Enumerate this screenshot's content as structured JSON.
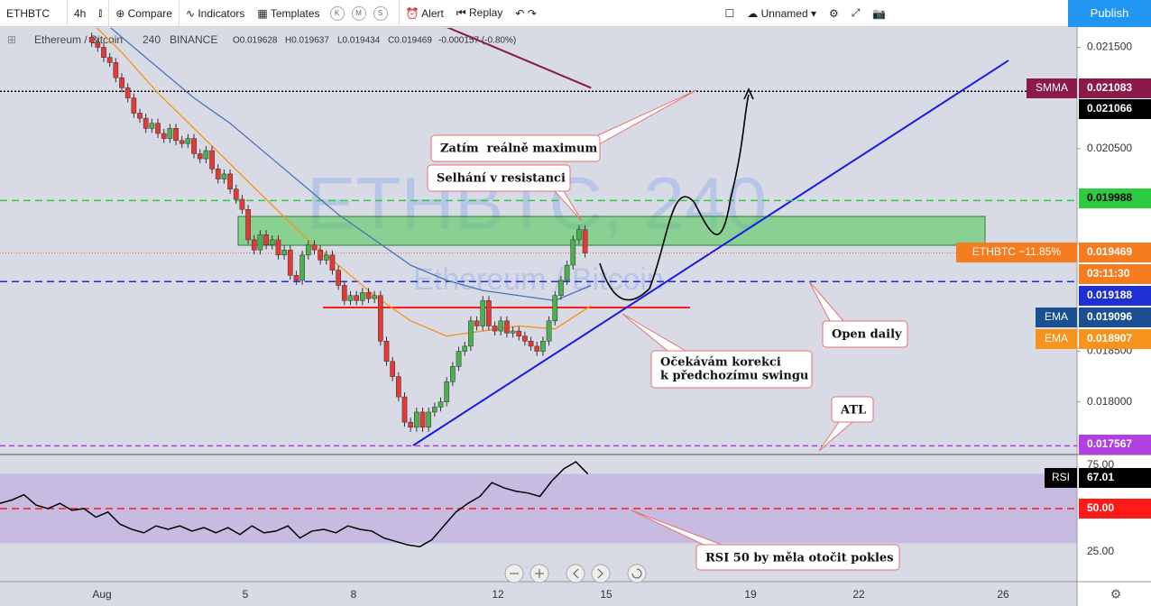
{
  "toolbar": {
    "symbol": "ETHBTC",
    "interval": "4h",
    "compare": "Compare",
    "indicators": "Indicators",
    "templates": "Templates",
    "k": "K",
    "m": "M",
    "s": "S",
    "alert": "Alert",
    "replay": "Replay",
    "layout": "Unnamed",
    "publish": "Publish"
  },
  "chart_data": {
    "type": "candlestick",
    "watermark": "ETHBTC, 240",
    "watermark_sub": "Ethereum / Bitcoin",
    "legend": {
      "name": "Ethereum / Bitcoin",
      "interval": "240",
      "exchange": "BINANCE",
      "open": "O0.019628",
      "high": "H0.019637",
      "low": "L0.019434",
      "close": "C0.019469",
      "change": "-0.000157 (-0.80%)"
    },
    "ylim": [
      0.01749,
      0.0217
    ],
    "yticks": [
      {
        "value": 0.0215,
        "label": "0.021500"
      },
      {
        "value": 0.0205,
        "label": "0.020500"
      },
      {
        "value": 0.0185,
        "label": "0.018500"
      },
      {
        "value": 0.018,
        "label": "0.018000"
      }
    ],
    "x_labels": [
      "Aug",
      "5",
      "8",
      "12",
      "15",
      "19",
      "22",
      "26"
    ],
    "colors": {
      "up": "#4caf50",
      "down": "#e53935"
    },
    "closes": [
      0.0216,
      0.02155,
      0.0215,
      0.0214,
      0.02135,
      0.0212,
      0.0211,
      0.021,
      0.02085,
      0.0208,
      0.0207,
      0.02075,
      0.02065,
      0.0206,
      0.0207,
      0.02058,
      0.02055,
      0.0206,
      0.02045,
      0.0204,
      0.02048,
      0.0203,
      0.0202,
      0.02025,
      0.0201,
      0.02,
      0.0199,
      0.0196,
      0.0195,
      0.01965,
      0.01955,
      0.0196,
      0.01945,
      0.0195,
      0.01925,
      0.0192,
      0.01945,
      0.01955,
      0.0195,
      0.0194,
      0.01945,
      0.0193,
      0.01915,
      0.019,
      0.01905,
      0.019,
      0.01908,
      0.01902,
      0.01905,
      0.0186,
      0.0184,
      0.01825,
      0.01805,
      0.0178,
      0.01775,
      0.0179,
      0.01775,
      0.0179,
      0.01795,
      0.018,
      0.0182,
      0.01835,
      0.0185,
      0.01855,
      0.0188,
      0.01875,
      0.019,
      0.01875,
      0.0187,
      0.0188,
      0.01868,
      0.0187,
      0.01865,
      0.0186,
      0.01855,
      0.0185,
      0.0186,
      0.0188,
      0.01905,
      0.0192,
      0.01935,
      0.0196,
      0.0197,
      0.01947
    ],
    "series": [
      {
        "name": "EMA",
        "color": "#4a74b8",
        "last": 0.019096,
        "values": [
          0.0219,
          0.0216,
          0.0213,
          0.021,
          0.02075,
          0.02045,
          0.02015,
          0.01985,
          0.0196,
          0.01935,
          0.0192,
          0.0191,
          0.01905,
          0.019,
          0.01915
        ]
      },
      {
        "name": "EMA",
        "color": "#f7931a",
        "last": 0.018907,
        "values": [
          0.0218,
          0.02145,
          0.02105,
          0.0207,
          0.02035,
          0.02,
          0.01965,
          0.01935,
          0.01905,
          0.0188,
          0.01865,
          0.0187,
          0.01875,
          0.01872,
          0.01895
        ]
      },
      {
        "name": "SMMA",
        "color": "#8b1a4a",
        "last": 0.021083,
        "values": [
          null,
          null,
          null,
          null,
          null,
          null,
          null,
          null,
          null,
          null,
          0.0217,
          0.02155,
          0.0214,
          0.02125,
          0.0211
        ]
      }
    ],
    "levels": [
      {
        "value": 0.021066,
        "color": "#000000"
      },
      {
        "value": 0.019988,
        "color": "#2ecc40"
      },
      {
        "value": 0.019188,
        "color": "#1f2fd6"
      },
      {
        "value": 0.017567,
        "color": "#b040e0"
      }
    ],
    "last": {
      "name": "ETHBTC −11.85%",
      "value": 0.019469,
      "countdown": "03:11:30",
      "color": "#f57c1f"
    },
    "zone": [
      0.019831,
      0.019546
    ],
    "support": 0.018932,
    "trendline": [
      0.01757,
      0.02137
    ],
    "annotations": [
      "Zatím  reálně maximum",
      "Selhání v resistanci",
      "Očekávám korekci",
      "k předchozímu swingu",
      "Open daily",
      "ATL",
      "RSI 50 by měla otočit pokles"
    ],
    "rsi": {
      "name": "RSI",
      "ylim": [
        7.8,
        80.7
      ],
      "yticks": [
        {
          "value": 75,
          "label": "75.00"
        },
        {
          "value": 25,
          "label": "25.00"
        }
      ],
      "band": [
        30,
        70
      ],
      "level": {
        "value": 50,
        "label": "50.00"
      },
      "last": 67.01,
      "values": [
        53,
        55,
        58,
        52,
        50,
        53,
        49,
        50,
        45,
        48,
        41,
        38,
        36,
        40,
        38,
        40,
        37,
        39,
        36,
        39,
        35,
        40,
        36,
        37,
        40,
        33,
        37,
        38,
        36,
        40,
        38,
        37,
        33,
        31,
        29,
        28,
        32,
        40,
        48,
        53,
        57,
        65,
        62,
        60,
        59,
        57,
        66,
        73,
        77,
        70
      ]
    }
  }
}
